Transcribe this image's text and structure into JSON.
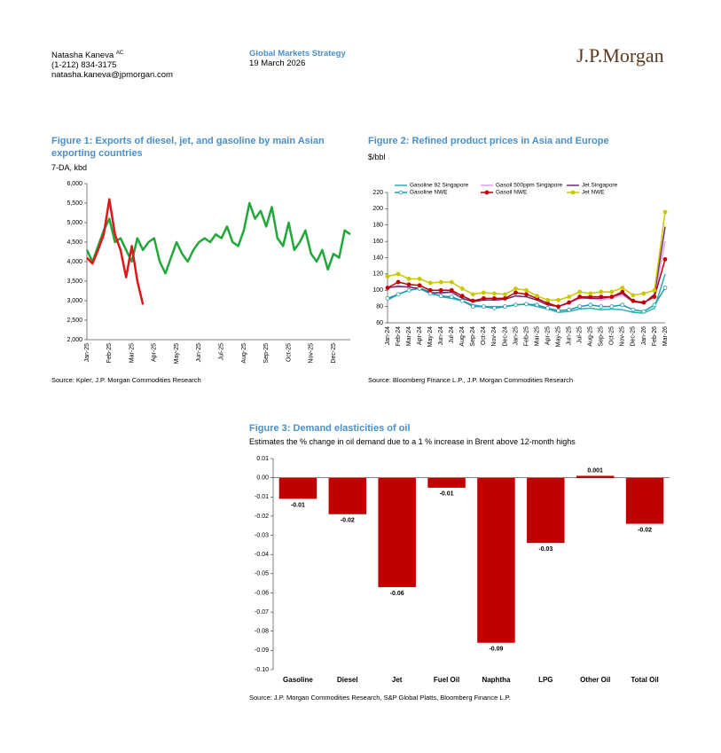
{
  "header": {
    "author": "Natasha Kaneva",
    "author_mark": "AC",
    "phone": "(1-212) 834-3175",
    "email": "natasha.kaneva@jpmorgan.com",
    "department": "Global Markets Strategy",
    "date": "19 March 2026",
    "logo": "J.P.Morgan"
  },
  "chart_data": [
    {
      "type": "line",
      "title": "Figure 1: Exports of diesel, jet, and gasoline by main Asian exporting countries",
      "subtitle": "7-DA, kbd",
      "source": "Source: Kpler, J.P. Morgan Commodities Research",
      "categories": [
        "Jan-25",
        null,
        null,
        null,
        "Feb-25",
        null,
        null,
        null,
        "Mar-25",
        null,
        null,
        null,
        "Apr-25",
        null,
        null,
        null,
        "May-25",
        null,
        null,
        null,
        "Jun-25",
        null,
        null,
        null,
        "Jul-25",
        null,
        null,
        null,
        "Aug-25",
        null,
        null,
        null,
        "Sep-25",
        null,
        null,
        null,
        "Oct-25",
        null,
        null,
        null,
        "Nov-25",
        null,
        null,
        null,
        "Dec-25",
        null,
        null,
        null
      ],
      "series": [
        {
          "color": "#22a83a",
          "values": [
            4300,
            4000,
            4400,
            4800,
            5100,
            4500,
            4600,
            4300,
            4000,
            4600,
            4300,
            4500,
            4600,
            4000,
            3700,
            4100,
            4500,
            4200,
            4000,
            4300,
            4500,
            4600,
            4500,
            4700,
            4600,
            4900,
            4500,
            4400,
            4800,
            5500,
            5100,
            5300,
            4900,
            5400,
            4600,
            4400,
            5000,
            4300,
            4500,
            4800,
            4200,
            4000,
            4300,
            3800,
            4200,
            4100,
            4800,
            4700
          ]
        },
        {
          "color": "#e0161b",
          "values": [
            4100,
            3950,
            4300,
            4700,
            5600,
            4700,
            4300,
            3600,
            4400,
            3500,
            2900,
            null,
            null,
            null,
            null,
            null,
            null,
            null,
            null,
            null,
            null,
            null,
            null,
            null,
            null,
            null,
            null,
            null,
            null,
            null,
            null,
            null,
            null,
            null,
            null,
            null,
            null,
            null,
            null,
            null,
            null,
            null,
            null,
            null,
            null,
            null,
            null,
            null
          ]
        }
      ],
      "ylim": [
        2000,
        6000
      ],
      "yticks": [
        {
          "value": 2000,
          "label": "2,000"
        },
        {
          "value": 2500,
          "label": "2,500"
        },
        {
          "value": 3000,
          "label": "3,000"
        },
        {
          "value": 3500,
          "label": "3,500"
        },
        {
          "value": 4000,
          "label": "4,000"
        },
        {
          "value": 4500,
          "label": "4,500"
        },
        {
          "value": 5000,
          "label": "5,000"
        },
        {
          "value": 5500,
          "label": "5,500"
        },
        {
          "value": 6000,
          "label": "6,000"
        }
      ],
      "grid": false,
      "line_width": 2.5
    },
    {
      "type": "line",
      "title": "Figure 2: Refined product prices in Asia and Europe",
      "subtitle": "$/bbl",
      "source": "Source: Bloomberg Finance L.P., J.P. Morgan Commodities Research",
      "categories": [
        "Jan-24",
        "Feb-24",
        "Mar-24",
        "Apr-24",
        "May-24",
        "Jun-24",
        "Jul-24",
        "Aug-24",
        "Sep-24",
        "Oct-24",
        "Nov-24",
        "Dec-24",
        "Jan-25",
        "Feb-25",
        "Mar-25",
        "Apr-25",
        "May-25",
        "Jun-25",
        "Jul-25",
        "Aug-25",
        "Sep-25",
        "Oct-25",
        "Nov-25",
        "Dec-25",
        "Jan-26",
        "Feb-26",
        "Mar-26"
      ],
      "series": [
        {
          "name": "Gasoline 92 Singapore",
          "color": "#2ab0b5",
          "values": [
            88,
            95,
            100,
            103,
            98,
            92,
            90,
            87,
            82,
            80,
            80,
            80,
            82,
            83,
            80,
            77,
            73,
            74,
            77,
            78,
            76,
            77,
            76,
            73,
            72,
            78,
            120
          ]
        },
        {
          "name": "Gasoil 500ppm Singapore",
          "color": "#e89ae8",
          "values": [
            104,
            104,
            104,
            102,
            97,
            96,
            97,
            90,
            86,
            88,
            88,
            89,
            93,
            92,
            88,
            82,
            80,
            84,
            90,
            90,
            88,
            90,
            94,
            86,
            84,
            92,
            160
          ]
        },
        {
          "name": "Jet Singapore",
          "color": "#6b2c6e",
          "values": [
            103,
            105,
            104,
            102,
            97,
            97,
            98,
            90,
            86,
            88,
            88,
            89,
            93,
            92,
            88,
            82,
            80,
            85,
            91,
            90,
            90,
            92,
            96,
            86,
            84,
            95,
            178
          ]
        },
        {
          "name": "Gasoline NWE",
          "color": "#1a9aa8",
          "marker": "circle-open",
          "values": [
            90,
            95,
            100,
            102,
            96,
            93,
            92,
            87,
            80,
            80,
            78,
            80,
            82,
            83,
            82,
            78,
            75,
            76,
            80,
            82,
            80,
            80,
            82,
            76,
            74,
            82,
            103
          ]
        },
        {
          "name": "Gasoil NWE",
          "color": "#c00000",
          "marker": "circle",
          "values": [
            103,
            110,
            107,
            106,
            100,
            100,
            100,
            93,
            87,
            90,
            90,
            90,
            97,
            95,
            90,
            84,
            80,
            85,
            92,
            92,
            92,
            92,
            98,
            87,
            85,
            92,
            138
          ]
        },
        {
          "name": "Jet NWE",
          "color": "#c8c800",
          "marker": "circle",
          "values": [
            117,
            120,
            114,
            114,
            109,
            110,
            110,
            102,
            95,
            97,
            96,
            95,
            102,
            100,
            93,
            88,
            88,
            92,
            98,
            96,
            98,
            98,
            103,
            94,
            96,
            100,
            196
          ]
        }
      ],
      "ylim": [
        60,
        220
      ],
      "yticks": [
        60,
        80,
        100,
        120,
        140,
        160,
        180,
        200,
        220
      ],
      "grid": false,
      "legend": "top",
      "line_width": 1.5
    },
    {
      "type": "bar",
      "title": "Figure 3: Demand elasticities of oil",
      "subtitle": "Estimates the % change in oil demand due to a 1 % increase in Brent above 12-month highs",
      "source": "Source: J.P. Morgan Commodities Research, S&P Global Platts, Bloomberg Finance L.P.",
      "categories": [
        "Gasoline",
        "Diesel",
        "Jet",
        "Fuel Oil",
        "Naphtha",
        "LPG",
        "Other Oil",
        "Total Oil"
      ],
      "values": [
        -0.011,
        -0.019,
        -0.057,
        -0.0052,
        -0.086,
        -0.034,
        0.001,
        -0.024
      ],
      "value_labels": [
        "-0.01",
        "-0.02",
        "-0.06",
        "-0.01",
        "-0.09",
        "-0.03",
        "0.001",
        "-0.02"
      ],
      "color": "#c00000",
      "ylim": [
        -0.1,
        0.01
      ],
      "yticks": [
        0.01,
        {
          "value": 0,
          "label": "0.00"
        },
        -0.01,
        -0.02,
        -0.03,
        -0.04,
        -0.05,
        -0.06,
        -0.07,
        -0.08,
        -0.09,
        {
          "value": -0.1,
          "label": "-0.10"
        }
      ],
      "grid": false
    }
  ]
}
